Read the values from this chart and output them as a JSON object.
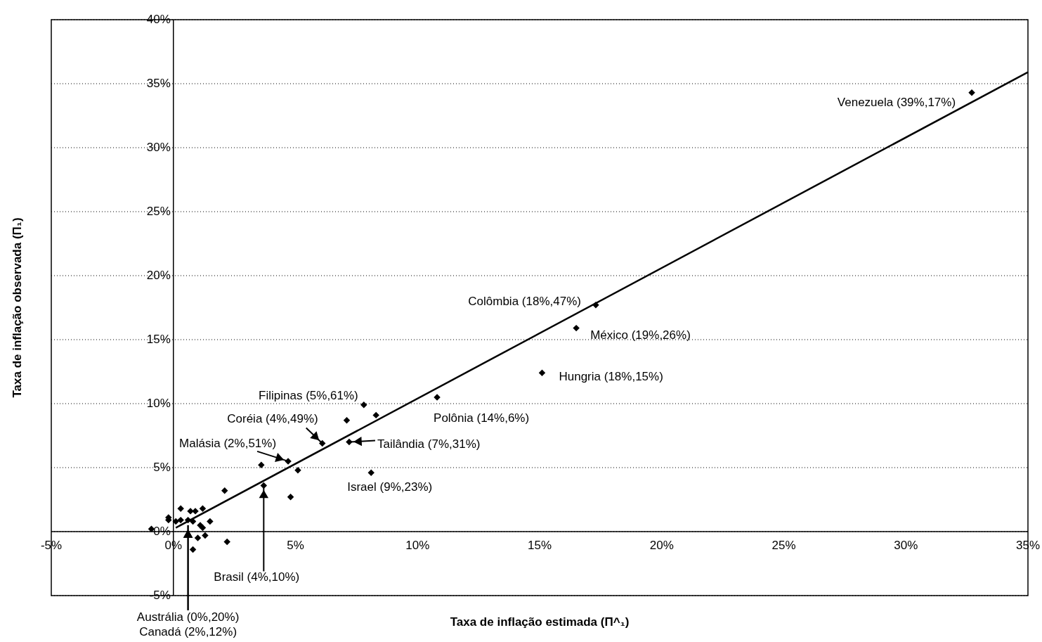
{
  "chart_data": {
    "type": "scatter",
    "xlabel": "Taxa de inflação estimada (Π^₁)",
    "ylabel": "Taxa de inflação observada (Π₁)",
    "xlim": [
      -5,
      35
    ],
    "ylim": [
      -5,
      40
    ],
    "xticks": [
      {
        "value": -5,
        "label": "-5%"
      },
      {
        "value": 0,
        "label": "0%"
      },
      {
        "value": 5,
        "label": "5%"
      },
      {
        "value": 10,
        "label": "10%"
      },
      {
        "value": 15,
        "label": "15%"
      },
      {
        "value": 20,
        "label": "20%"
      },
      {
        "value": 25,
        "label": "25%"
      },
      {
        "value": 30,
        "label": "30%"
      },
      {
        "value": 35,
        "label": "35%"
      }
    ],
    "yticks": [
      {
        "value": -5,
        "label": "-5%"
      },
      {
        "value": 0,
        "label": "0%"
      },
      {
        "value": 5,
        "label": "5%"
      },
      {
        "value": 10,
        "label": "10%"
      },
      {
        "value": 15,
        "label": "15%"
      },
      {
        "value": 20,
        "label": "20%"
      },
      {
        "value": 25,
        "label": "25%"
      },
      {
        "value": 30,
        "label": "30%"
      },
      {
        "value": 35,
        "label": "35%"
      },
      {
        "value": 40,
        "label": "40%"
      }
    ],
    "grid": "y",
    "series": [
      {
        "type": "scatter",
        "marker": "diamond",
        "color": "#000000",
        "x": [
          32.7,
          17.3,
          16.5,
          15.1,
          10.8,
          7.8,
          8.3,
          7.1,
          6.1,
          7.2,
          4.7,
          3.6,
          5.1,
          8.1,
          3.7,
          4.8,
          2.1,
          2.2,
          0.3,
          0.7,
          0.9,
          1.2,
          -0.2,
          -0.2,
          0.1,
          0.3,
          0.6,
          0.8,
          1.5,
          1.1,
          1.2,
          1.0,
          1.3,
          0.8,
          -0.9
        ],
        "values": [
          34.3,
          17.7,
          15.9,
          12.4,
          10.5,
          9.9,
          9.1,
          8.7,
          6.9,
          7.0,
          5.5,
          5.2,
          4.8,
          4.6,
          3.6,
          2.7,
          3.2,
          -0.8,
          1.8,
          1.6,
          1.6,
          1.8,
          1.1,
          0.9,
          0.8,
          0.9,
          0.9,
          0.8,
          0.8,
          0.5,
          0.3,
          -0.5,
          -0.3,
          -1.4,
          0.2
        ]
      },
      {
        "type": "line",
        "color": "#000000",
        "x": [
          0.1,
          35
        ],
        "values": [
          0.3,
          35.9
        ]
      }
    ],
    "annotations": [
      {
        "text": "Venezuela (39%,17%)",
        "x": 32.7,
        "y": 34.3
      },
      {
        "text": "Colômbia (18%,47%)",
        "x": 17.3,
        "y": 17.7
      },
      {
        "text": "México (19%,26%)",
        "x": 16.5,
        "y": 15.9
      },
      {
        "text": "Hungria (18%,15%)",
        "x": 15.1,
        "y": 12.4
      },
      {
        "text": "Filipinas (5%,61%)",
        "x": 7.8,
        "y": 9.9
      },
      {
        "text": "Polônia (14%,6%)",
        "x": 10.8,
        "y": 10.5
      },
      {
        "text": "Coréia (4%,49%)",
        "x": 6.1,
        "y": 6.9
      },
      {
        "text": "Malásia (2%,51%)",
        "x": 4.7,
        "y": 5.5
      },
      {
        "text": "Tailândia (7%,31%)",
        "x": 7.2,
        "y": 7.0
      },
      {
        "text": "Israel (9%,23%)",
        "x": 8.1,
        "y": 4.6
      },
      {
        "text": "Brasil (4%,10%)",
        "x": 3.7,
        "y": 3.6
      },
      {
        "text": "Austrália (0%,20%)",
        "x": 0.6,
        "y": 0.5
      },
      {
        "text": "Canadá (2%,12%)",
        "x": 0.6,
        "y": 0.5
      }
    ]
  }
}
